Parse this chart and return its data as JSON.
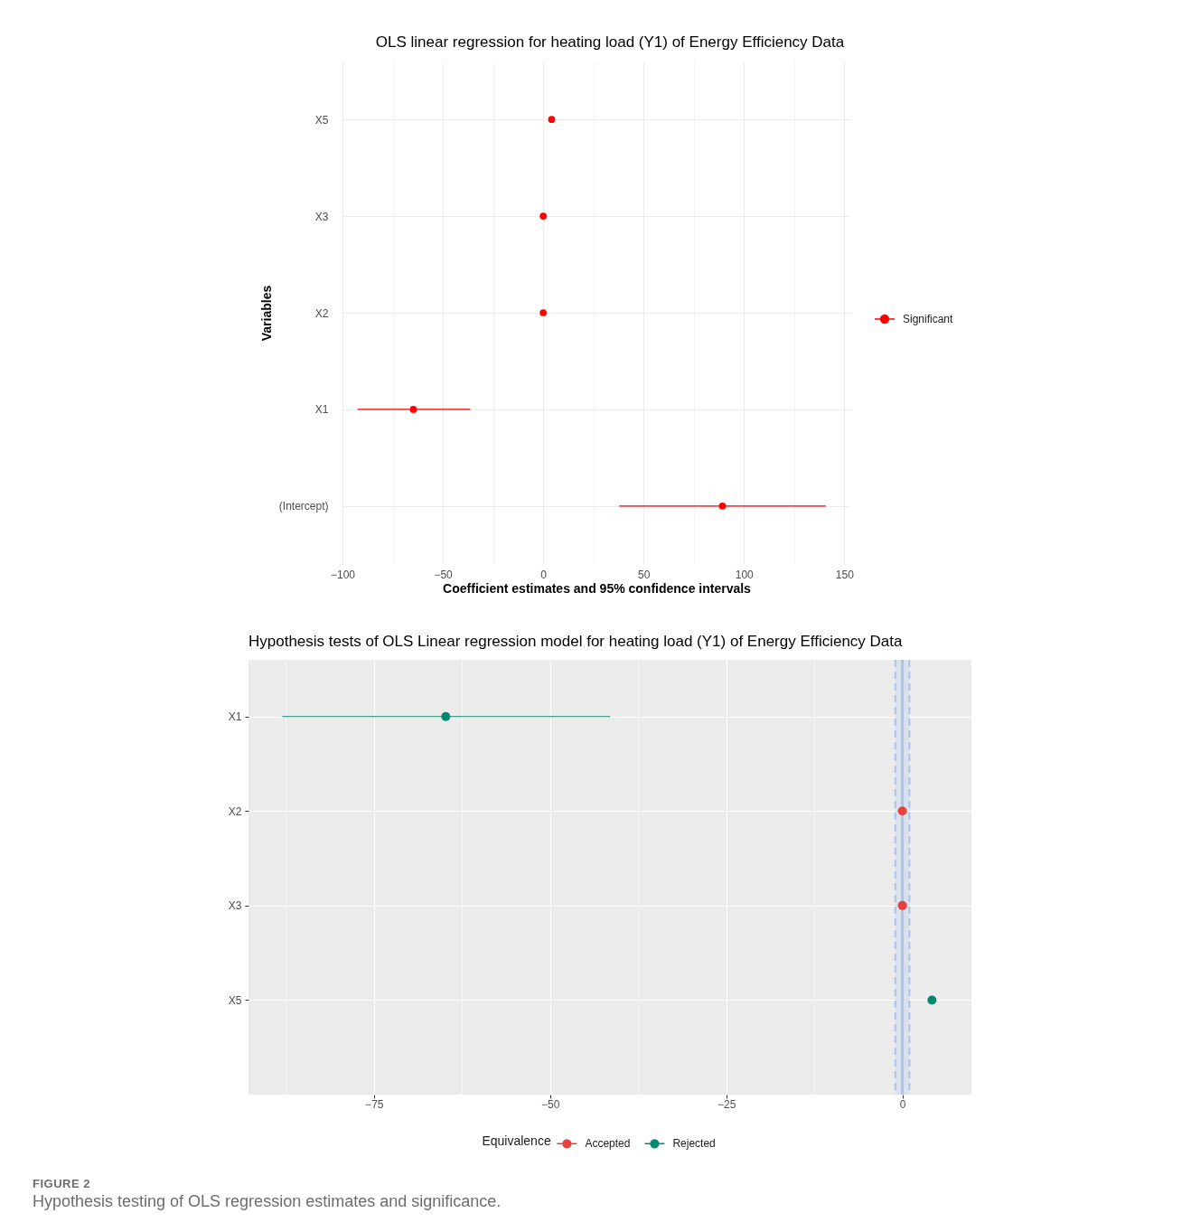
{
  "chart_data": [
    {
      "type": "scatter",
      "orientation": "horizontal",
      "title": "OLS linear regression for heating load (Y1) of Energy Efficiency Data",
      "xlabel": "Coefficient estimates and 95% confidence intervals",
      "ylabel": "Variables",
      "categories": [
        "X5",
        "X3",
        "X2",
        "X1",
        "(Intercept)"
      ],
      "series": [
        {
          "name": "Significant",
          "color": "#ff0000",
          "values": [
            4.2,
            0,
            0,
            -64.7,
            89.3
          ],
          "errors": [
            null,
            null,
            null,
            [
              -92.5,
              -36.3
            ],
            [
              37.8,
              140.8
            ]
          ]
        }
      ],
      "xlim": [
        -100,
        153
      ],
      "xticks": [
        -100,
        {
          "value": -75,
          "label": null
        },
        -50,
        {
          "value": -25,
          "label": null
        },
        0,
        {
          "value": 25,
          "label": null
        },
        50,
        {
          "value": 75,
          "label": null
        },
        100,
        {
          "value": 125,
          "label": null
        },
        150
      ],
      "grid": true,
      "legend": "right",
      "marker": "circle"
    },
    {
      "type": "scatter",
      "orientation": "horizontal",
      "title": "Hypothesis tests of OLS Linear regression model for heating load (Y1) of Energy Efficiency Data",
      "legend_title": "Equivalence",
      "categories": [
        "X1",
        "X2",
        "X3",
        "X5"
      ],
      "series": [
        {
          "name": "Accepted",
          "color": "#e8413c",
          "values": [
            null,
            0,
            0,
            null
          ]
        },
        {
          "name": "Rejected",
          "color": "#00896f",
          "values": [
            -64.8,
            null,
            null,
            4.2
          ],
          "errors": [
            [
              -88,
              -41.5
            ],
            null,
            null,
            null
          ]
        }
      ],
      "xlim": [
        -92.8,
        9.8
      ],
      "xticks": [
        {
          "value": -87.5,
          "label": null
        },
        -75,
        {
          "value": -62.5,
          "label": null
        },
        -50,
        {
          "value": -37.5,
          "label": null
        },
        -25,
        {
          "value": -12.5,
          "label": null
        },
        0
      ],
      "bands": [
        {
          "axis": "x",
          "from": -1,
          "to": 1,
          "color": "#d9e0ee"
        }
      ],
      "ref_lines": [
        {
          "axis": "x",
          "value": 0,
          "color": "#aec2e4",
          "line_style": "solid"
        },
        {
          "axis": "x",
          "value": -1,
          "color": "#aec2e4",
          "line_style": "dashed"
        },
        {
          "axis": "x",
          "value": 1,
          "color": "#aec2e4",
          "line_style": "dashed"
        }
      ],
      "grid": true,
      "legend": "bottom",
      "marker": "circle",
      "annotations": [
        "FIGURE 2",
        "Hypothesis testing of OLS regression estimates and significance."
      ]
    }
  ]
}
